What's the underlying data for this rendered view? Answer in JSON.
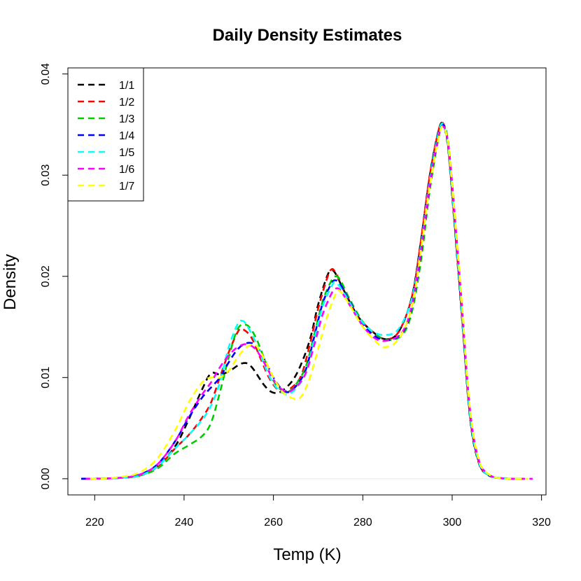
{
  "chart_data": {
    "type": "line",
    "title": "Daily Density Estimates",
    "xlabel": "Temp (K)",
    "ylabel": "Density",
    "xlim": [
      214,
      321
    ],
    "ylim": [
      -0.0016,
      0.0406
    ],
    "x_ticks": [
      220,
      240,
      260,
      280,
      300,
      320
    ],
    "y_ticks": [
      0.0,
      0.01,
      0.02,
      0.03,
      0.04
    ],
    "x_tick_labels": [
      "220",
      "240",
      "260",
      "280",
      "300",
      "320"
    ],
    "y_tick_labels": [
      "0.00",
      "0.01",
      "0.02",
      "0.03",
      "0.04"
    ],
    "legend_position": "top-left",
    "grid": false,
    "line_style": "dashed",
    "series": [
      {
        "name": "1/1",
        "color": "#000000",
        "x": [
          217,
          222,
          226,
          230,
          234,
          238,
          241,
          244,
          246,
          248,
          250,
          253,
          255,
          258,
          260,
          262,
          265,
          268,
          270,
          272,
          273,
          274,
          276,
          279,
          282,
          285,
          288,
          291,
          293,
          295,
          297,
          298,
          299,
          300,
          302,
          304,
          306,
          308,
          310,
          313,
          316
        ],
        "y": [
          0,
          2e-05,
          0.0001,
          0.0003,
          0.0012,
          0.0032,
          0.0058,
          0.0088,
          0.0104,
          0.0103,
          0.0106,
          0.0114,
          0.0111,
          0.0092,
          0.0085,
          0.0087,
          0.0102,
          0.0135,
          0.0172,
          0.02,
          0.0206,
          0.0202,
          0.0184,
          0.016,
          0.0146,
          0.0138,
          0.0145,
          0.018,
          0.0235,
          0.03,
          0.0345,
          0.035,
          0.033,
          0.028,
          0.017,
          0.006,
          0.0015,
          0.0004,
          0.0001,
          0,
          0
        ]
      },
      {
        "name": "1/2",
        "color": "#ff0000",
        "x": [
          218,
          222,
          226,
          230,
          234,
          238,
          241,
          244,
          246,
          248,
          250,
          252,
          253,
          255,
          257,
          259,
          261,
          263,
          266,
          268,
          270,
          272,
          273,
          274,
          276,
          279,
          282,
          285,
          288,
          291,
          293,
          295,
          297,
          298,
          299,
          300,
          302,
          304,
          306,
          308,
          310,
          313,
          316
        ],
        "y": [
          0,
          2e-05,
          0.0001,
          0.0003,
          0.0011,
          0.003,
          0.0043,
          0.006,
          0.0075,
          0.01,
          0.0125,
          0.0145,
          0.0148,
          0.014,
          0.012,
          0.01,
          0.0088,
          0.0087,
          0.01,
          0.013,
          0.0168,
          0.0198,
          0.0207,
          0.0203,
          0.0185,
          0.016,
          0.0146,
          0.0138,
          0.0145,
          0.018,
          0.0235,
          0.03,
          0.0345,
          0.0351,
          0.0332,
          0.0282,
          0.0172,
          0.0062,
          0.0016,
          0.0004,
          0.0001,
          0,
          0
        ]
      },
      {
        "name": "1/3",
        "color": "#00cd00",
        "x": [
          218,
          222,
          226,
          230,
          234,
          238,
          241,
          244,
          246,
          248,
          250,
          252,
          254,
          256,
          258,
          260,
          262,
          264,
          267,
          269,
          271,
          273,
          274,
          275,
          277,
          280,
          283,
          286,
          289,
          291,
          293,
          295,
          297,
          298,
          299,
          300,
          302,
          304,
          306,
          308,
          310,
          313,
          316
        ],
        "y": [
          0,
          2e-05,
          0.0001,
          0.0003,
          0.001,
          0.0025,
          0.0033,
          0.0042,
          0.0055,
          0.0085,
          0.012,
          0.0148,
          0.0152,
          0.014,
          0.0118,
          0.0097,
          0.0087,
          0.0088,
          0.0108,
          0.014,
          0.0175,
          0.0196,
          0.02,
          0.0196,
          0.0178,
          0.0155,
          0.0142,
          0.0137,
          0.0143,
          0.0165,
          0.0215,
          0.0285,
          0.0338,
          0.035,
          0.0336,
          0.029,
          0.018,
          0.0066,
          0.0017,
          0.0004,
          0.0001,
          0,
          0
        ]
      },
      {
        "name": "1/4",
        "color": "#0000ff",
        "x": [
          217,
          222,
          226,
          230,
          234,
          238,
          241,
          244,
          246,
          248,
          250,
          252,
          254,
          256,
          258,
          260,
          262,
          264,
          267,
          269,
          271,
          273,
          274,
          275,
          277,
          280,
          283,
          286,
          289,
          291,
          293,
          295,
          297,
          298,
          299,
          300,
          302,
          304,
          306,
          308,
          310,
          313,
          316
        ],
        "y": [
          0,
          2e-05,
          0.0001,
          0.0004,
          0.0014,
          0.0037,
          0.006,
          0.008,
          0.009,
          0.01,
          0.0115,
          0.0128,
          0.0134,
          0.0132,
          0.0118,
          0.01,
          0.0088,
          0.0087,
          0.0105,
          0.0138,
          0.0173,
          0.0193,
          0.0196,
          0.0192,
          0.0176,
          0.0153,
          0.014,
          0.0137,
          0.0145,
          0.017,
          0.0222,
          0.029,
          0.034,
          0.035,
          0.0334,
          0.0286,
          0.0176,
          0.0064,
          0.0016,
          0.0004,
          0.0001,
          0,
          0
        ]
      },
      {
        "name": "1/5",
        "color": "#00ffff",
        "x": [
          219,
          222,
          226,
          230,
          234,
          238,
          241,
          244,
          246,
          248,
          250,
          252,
          253,
          254,
          256,
          258,
          260,
          262,
          264,
          267,
          269,
          271,
          273,
          274,
          276,
          279,
          282,
          285,
          288,
          291,
          293,
          295,
          297,
          298,
          299,
          300,
          302,
          304,
          306,
          308,
          310,
          313,
          316
        ],
        "y": [
          0,
          2e-05,
          0.0001,
          0.0003,
          0.0012,
          0.003,
          0.0043,
          0.0058,
          0.0072,
          0.0095,
          0.013,
          0.0153,
          0.0156,
          0.0152,
          0.0135,
          0.0112,
          0.0094,
          0.0085,
          0.0085,
          0.0102,
          0.0135,
          0.017,
          0.019,
          0.0194,
          0.0182,
          0.016,
          0.0146,
          0.0142,
          0.0148,
          0.0178,
          0.023,
          0.0296,
          0.0343,
          0.035,
          0.0332,
          0.0284,
          0.0174,
          0.0063,
          0.0016,
          0.0004,
          0.0001,
          0,
          0
        ]
      },
      {
        "name": "1/6",
        "color": "#ff00ff",
        "x": [
          218,
          222,
          226,
          230,
          234,
          238,
          241,
          244,
          246,
          248,
          250,
          252,
          254,
          256,
          258,
          260,
          262,
          264,
          267,
          269,
          271,
          273,
          274,
          275,
          277,
          280,
          283,
          286,
          289,
          291,
          293,
          295,
          297,
          298,
          299,
          300,
          302,
          304,
          306,
          308,
          310,
          313,
          318
        ],
        "y": [
          0,
          2e-05,
          0.0001,
          0.0004,
          0.0014,
          0.0037,
          0.0062,
          0.0083,
          0.0095,
          0.011,
          0.0122,
          0.013,
          0.0133,
          0.0128,
          0.0114,
          0.0098,
          0.0088,
          0.0087,
          0.0102,
          0.013,
          0.0162,
          0.0183,
          0.0188,
          0.0186,
          0.0172,
          0.0151,
          0.0138,
          0.0137,
          0.0146,
          0.0172,
          0.0225,
          0.0292,
          0.034,
          0.0348,
          0.0335,
          0.0292,
          0.0182,
          0.0068,
          0.0018,
          0.0005,
          0.0001,
          0,
          0
        ]
      },
      {
        "name": "1/7",
        "color": "#ffff00",
        "x": [
          219,
          222,
          226,
          230,
          234,
          238,
          241,
          244,
          246,
          248,
          250,
          252,
          254,
          256,
          258,
          260,
          262,
          264,
          266,
          268,
          270,
          272,
          274,
          275,
          277,
          280,
          283,
          285,
          288,
          291,
          293,
          295,
          297,
          298,
          299,
          300,
          302,
          304,
          306,
          308,
          310,
          313,
          317
        ],
        "y": [
          0,
          2e-05,
          0.0002,
          0.0006,
          0.002,
          0.0048,
          0.0075,
          0.0095,
          0.01,
          0.01,
          0.0107,
          0.012,
          0.013,
          0.0132,
          0.0118,
          0.01,
          0.0086,
          0.008,
          0.008,
          0.0098,
          0.0128,
          0.016,
          0.0183,
          0.0185,
          0.0172,
          0.015,
          0.0135,
          0.013,
          0.0138,
          0.017,
          0.0225,
          0.029,
          0.0338,
          0.0348,
          0.0334,
          0.029,
          0.0182,
          0.0068,
          0.0018,
          0.0005,
          0.0001,
          0,
          0
        ]
      }
    ]
  }
}
